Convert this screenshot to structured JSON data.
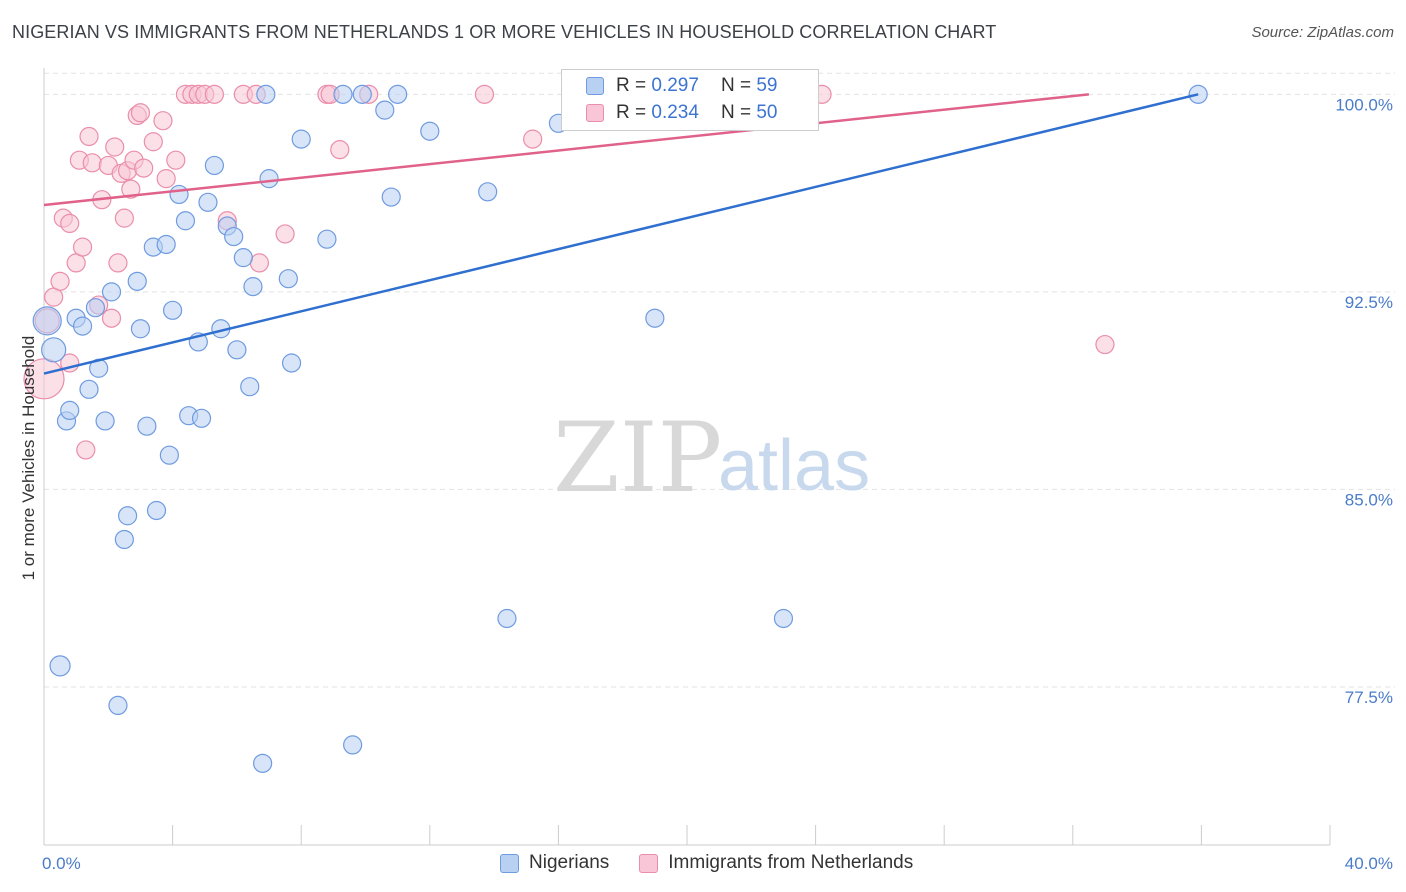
{
  "title": "NIGERIAN VS IMMIGRANTS FROM NETHERLANDS 1 OR MORE VEHICLES IN HOUSEHOLD CORRELATION CHART",
  "source": "Source: ZipAtlas.com",
  "watermark": {
    "zip": "ZIP",
    "atlas": "atlas"
  },
  "legend": {
    "rows": [
      {
        "r_label": "R =",
        "r_value": "0.297",
        "n_label": "N =",
        "n_value": "59"
      },
      {
        "r_label": "R =",
        "r_value": "0.234",
        "n_label": "N =",
        "n_value": "50"
      }
    ]
  },
  "bottom_legend": [
    "Nigerians",
    "Immigrants from Netherlands"
  ],
  "colors": {
    "blue_fill": "#b8d0f2",
    "blue_stroke": "#6f9be0",
    "blue_line": "#2f6fcf",
    "pink_fill": "#f8c6d6",
    "pink_stroke": "#ea8eab",
    "pink_line": "#e0628a",
    "grid": "#e3e3e3",
    "tick_text": "#4a7cc9"
  },
  "chart_data": {
    "type": "scatter",
    "title": "NIGERIAN VS IMMIGRANTS FROM NETHERLANDS 1 OR MORE VEHICLES IN HOUSEHOLD CORRELATION CHART",
    "xlabel": "",
    "ylabel": "1 or more Vehicles in Household",
    "xlim": [
      0,
      40
    ],
    "ylim": [
      71.5,
      101.0
    ],
    "x_tick_labels": [
      "0.0%",
      "40.0%"
    ],
    "y_ticks": [
      77.5,
      85.0,
      92.5,
      100.0
    ],
    "y_tick_labels": [
      "77.5%",
      "85.0%",
      "92.5%",
      "100.0%"
    ],
    "grid": true,
    "legend_position": "top-center",
    "series": [
      {
        "name": "Nigerians",
        "r": 0.297,
        "n": 59,
        "trend": {
          "x": [
            0,
            35.9
          ],
          "y": [
            89.4,
            100.0
          ]
        },
        "points": [
          [
            0.1,
            91.4,
            14
          ],
          [
            0.3,
            90.3,
            12
          ],
          [
            0.5,
            78.3,
            10
          ],
          [
            0.7,
            87.6,
            9
          ],
          [
            0.8,
            88.0,
            9
          ],
          [
            1.0,
            91.5,
            9
          ],
          [
            1.2,
            91.2,
            9
          ],
          [
            1.4,
            88.8,
            9
          ],
          [
            1.6,
            91.9,
            9
          ],
          [
            1.7,
            89.6,
            9
          ],
          [
            1.9,
            87.6,
            9
          ],
          [
            2.1,
            92.5,
            9
          ],
          [
            2.3,
            76.8,
            9
          ],
          [
            2.5,
            83.1,
            9
          ],
          [
            2.6,
            84.0,
            9
          ],
          [
            2.9,
            92.9,
            9
          ],
          [
            3.0,
            91.1,
            9
          ],
          [
            3.2,
            87.4,
            9
          ],
          [
            3.4,
            94.2,
            9
          ],
          [
            3.5,
            84.2,
            9
          ],
          [
            3.8,
            94.3,
            9
          ],
          [
            3.9,
            86.3,
            9
          ],
          [
            4.0,
            91.8,
            9
          ],
          [
            4.2,
            96.2,
            9
          ],
          [
            4.4,
            95.2,
            9
          ],
          [
            4.5,
            87.8,
            9
          ],
          [
            4.8,
            90.6,
            9
          ],
          [
            4.9,
            87.7,
            9
          ],
          [
            5.1,
            95.9,
            9
          ],
          [
            5.3,
            97.3,
            9
          ],
          [
            5.5,
            91.1,
            9
          ],
          [
            5.7,
            95.0,
            9
          ],
          [
            5.9,
            94.6,
            9
          ],
          [
            6.0,
            90.3,
            9
          ],
          [
            6.2,
            93.8,
            9
          ],
          [
            6.4,
            88.9,
            9
          ],
          [
            6.5,
            92.7,
            9
          ],
          [
            6.8,
            74.6,
            9
          ],
          [
            6.9,
            100.0,
            9
          ],
          [
            7.0,
            96.8,
            9
          ],
          [
            7.6,
            93.0,
            9
          ],
          [
            7.7,
            89.8,
            9
          ],
          [
            8.0,
            98.3,
            9
          ],
          [
            8.8,
            94.5,
            9
          ],
          [
            9.3,
            100.0,
            9
          ],
          [
            9.6,
            75.3,
            9
          ],
          [
            9.9,
            100.0,
            9
          ],
          [
            10.6,
            99.4,
            9
          ],
          [
            10.8,
            96.1,
            9
          ],
          [
            11.0,
            100.0,
            9
          ],
          [
            12.0,
            98.6,
            9
          ],
          [
            13.8,
            96.3,
            9
          ],
          [
            14.4,
            80.1,
            9
          ],
          [
            16.0,
            98.9,
            9
          ],
          [
            17.3,
            100.0,
            9
          ],
          [
            18.7,
            100.0,
            9
          ],
          [
            19.0,
            91.5,
            9
          ],
          [
            23.0,
            80.1,
            9
          ],
          [
            35.9,
            100.0,
            9
          ]
        ]
      },
      {
        "name": "Immigrants from Netherlands",
        "r": 0.234,
        "n": 50,
        "trend": {
          "x": [
            0,
            32.5
          ],
          "y": [
            95.8,
            100.0
          ]
        },
        "points": [
          [
            0.0,
            89.2,
            20
          ],
          [
            0.1,
            91.4,
            12
          ],
          [
            0.3,
            92.3,
            9
          ],
          [
            0.5,
            92.9,
            9
          ],
          [
            0.6,
            95.3,
            9
          ],
          [
            0.8,
            95.1,
            9
          ],
          [
            0.8,
            89.8,
            9
          ],
          [
            1.0,
            93.6,
            9
          ],
          [
            1.1,
            97.5,
            9
          ],
          [
            1.2,
            94.2,
            9
          ],
          [
            1.3,
            86.5,
            9
          ],
          [
            1.4,
            98.4,
            9
          ],
          [
            1.5,
            97.4,
            9
          ],
          [
            1.7,
            92.0,
            9
          ],
          [
            1.8,
            96.0,
            9
          ],
          [
            2.0,
            97.3,
            9
          ],
          [
            2.1,
            91.5,
            9
          ],
          [
            2.2,
            98.0,
            9
          ],
          [
            2.3,
            93.6,
            9
          ],
          [
            2.4,
            97.0,
            9
          ],
          [
            2.5,
            95.3,
            9
          ],
          [
            2.6,
            97.1,
            9
          ],
          [
            2.7,
            96.4,
            9
          ],
          [
            2.8,
            97.5,
            9
          ],
          [
            2.9,
            99.2,
            9
          ],
          [
            3.0,
            99.3,
            9
          ],
          [
            3.1,
            97.2,
            9
          ],
          [
            3.4,
            98.2,
            9
          ],
          [
            3.7,
            99.0,
            9
          ],
          [
            3.8,
            96.8,
            9
          ],
          [
            4.1,
            97.5,
            9
          ],
          [
            4.4,
            100.0,
            9
          ],
          [
            4.6,
            100.0,
            9
          ],
          [
            4.8,
            100.0,
            9
          ],
          [
            5.0,
            100.0,
            9
          ],
          [
            5.3,
            100.0,
            9
          ],
          [
            5.7,
            95.2,
            9
          ],
          [
            6.2,
            100.0,
            9
          ],
          [
            6.6,
            100.0,
            9
          ],
          [
            6.7,
            93.6,
            9
          ],
          [
            7.5,
            94.7,
            9
          ],
          [
            8.8,
            100.0,
            9
          ],
          [
            8.9,
            100.0,
            9
          ],
          [
            9.2,
            97.9,
            9
          ],
          [
            10.1,
            100.0,
            9
          ],
          [
            13.7,
            100.0,
            9
          ],
          [
            15.2,
            98.3,
            9
          ],
          [
            17.0,
            99.4,
            9
          ],
          [
            24.2,
            100.0,
            9
          ],
          [
            33.0,
            90.5,
            9
          ]
        ]
      }
    ]
  }
}
